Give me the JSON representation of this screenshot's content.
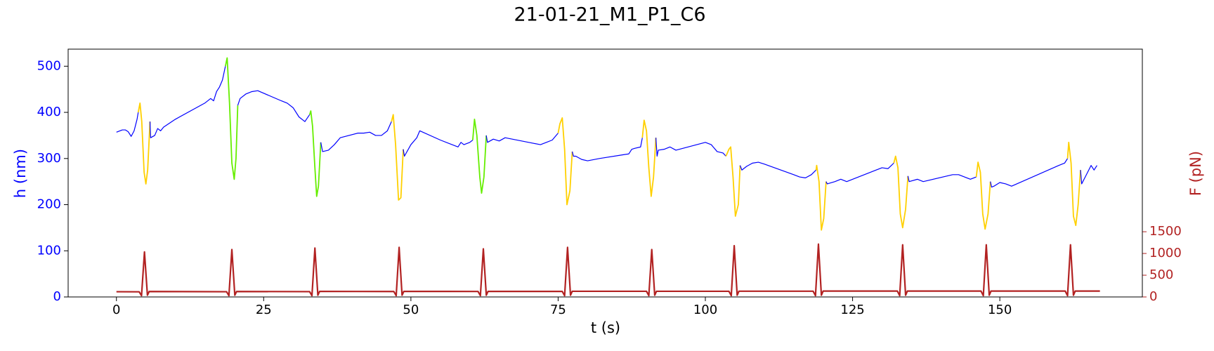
{
  "chart_data": {
    "type": "line",
    "title": "21-01-21_M1_P1_C6",
    "xlabel": "t (s)",
    "ylabel": "h (nm)",
    "y2label": "F (pN)",
    "ylabel_color": "#0000ff",
    "y2label_color": "#b22222",
    "xlim": [
      -8.2,
      174.2
    ],
    "xticks": [
      0,
      25,
      50,
      75,
      100,
      125,
      150
    ],
    "ylim": [
      0,
      537
    ],
    "yticks": [
      0,
      100,
      200,
      300,
      400,
      500
    ],
    "y2lim": [
      0,
      5700
    ],
    "y2ticks": [
      0,
      500,
      1000,
      1500
    ],
    "series": [
      {
        "color": "#0000ff",
        "x": [
          0,
          1,
          1.5,
          2,
          2.5,
          3,
          3.5,
          3.7
        ],
        "values": [
          357,
          362,
          362,
          358,
          348,
          360,
          385,
          400
        ]
      },
      {
        "color": "#ffd000",
        "x": [
          3.7,
          4,
          4.3,
          4.7,
          5,
          5.3,
          5.7
        ],
        "values": [
          400,
          420,
          380,
          270,
          245,
          275,
          380
        ]
      },
      {
        "color": "#0000ff",
        "x": [
          5.7,
          5.8,
          6.5,
          7,
          7.5,
          8,
          10,
          15,
          16,
          16.5,
          17,
          17.5,
          18,
          18.5
        ],
        "values": [
          380,
          345,
          350,
          365,
          360,
          368,
          385,
          420,
          430,
          425,
          445,
          455,
          470,
          500
        ]
      },
      {
        "color": "#66ee00",
        "x": [
          18.5,
          18.8,
          19.2,
          19.6,
          20,
          20.3,
          20.6
        ],
        "values": [
          500,
          518,
          420,
          290,
          255,
          300,
          415
        ]
      },
      {
        "color": "#0000ff",
        "x": [
          20.6,
          21,
          22,
          23,
          24,
          28,
          29,
          30,
          31,
          32,
          32.8
        ],
        "values": [
          415,
          430,
          440,
          445,
          447,
          425,
          420,
          410,
          390,
          380,
          395
        ]
      },
      {
        "color": "#66ee00",
        "x": [
          32.8,
          33,
          33.3,
          33.7,
          34,
          34.3,
          34.7
        ],
        "values": [
          395,
          403,
          370,
          280,
          218,
          240,
          335
        ]
      },
      {
        "color": "#0000ff",
        "x": [
          34.7,
          35,
          36,
          37,
          38,
          41,
          42,
          43,
          44,
          45,
          46,
          46.7
        ],
        "values": [
          335,
          315,
          318,
          330,
          345,
          355,
          355,
          357,
          350,
          350,
          360,
          380
        ]
      },
      {
        "color": "#ffd000",
        "x": [
          46.7,
          47,
          47.4,
          47.9,
          48.3,
          48.7
        ],
        "values": [
          380,
          395,
          330,
          210,
          215,
          320
        ]
      },
      {
        "color": "#0000ff",
        "x": [
          48.7,
          48.9,
          50,
          51,
          51.5,
          55,
          58,
          58.5,
          59,
          60,
          60.5
        ],
        "values": [
          320,
          305,
          330,
          345,
          360,
          340,
          325,
          335,
          330,
          335,
          340
        ]
      },
      {
        "color": "#66ee00",
        "x": [
          60.5,
          60.8,
          61.2,
          61.7,
          62,
          62.4,
          62.8
        ],
        "values": [
          340,
          385,
          350,
          260,
          225,
          260,
          350
        ]
      },
      {
        "color": "#0000ff",
        "x": [
          62.8,
          63,
          64,
          65,
          66,
          70,
          72,
          73,
          74,
          75
        ],
        "values": [
          350,
          335,
          342,
          338,
          345,
          335,
          330,
          335,
          340,
          355
        ]
      },
      {
        "color": "#ffd000",
        "x": [
          75,
          75.3,
          75.7,
          76.1,
          76.5,
          77,
          77.4
        ],
        "values": [
          355,
          375,
          388,
          320,
          200,
          230,
          315
        ]
      },
      {
        "color": "#0000ff",
        "x": [
          77.4,
          77.6,
          78,
          79,
          80,
          82,
          86,
          87,
          87.5,
          88,
          89,
          89.3
        ],
        "values": [
          315,
          305,
          305,
          298,
          295,
          300,
          308,
          310,
          320,
          322,
          325,
          345
        ]
      },
      {
        "color": "#ffd000",
        "x": [
          89.3,
          89.6,
          90,
          90.4,
          90.8,
          91.2,
          91.6
        ],
        "values": [
          345,
          383,
          360,
          280,
          218,
          260,
          345
        ]
      },
      {
        "color": "#0000ff",
        "x": [
          91.6,
          91.8,
          92,
          93,
          94,
          95,
          100,
          101,
          102,
          103,
          103.5
        ],
        "values": [
          345,
          305,
          318,
          320,
          325,
          318,
          335,
          330,
          315,
          312,
          305
        ]
      },
      {
        "color": "#ffd000",
        "x": [
          103.5,
          104,
          104.3,
          104.7,
          105.1,
          105.6,
          105.9
        ],
        "values": [
          305,
          320,
          325,
          260,
          175,
          200,
          285
        ]
      },
      {
        "color": "#0000ff",
        "x": [
          105.9,
          106.2,
          107,
          108,
          109,
          110,
          115,
          116,
          117,
          118,
          118.8
        ],
        "values": [
          285,
          275,
          283,
          290,
          292,
          288,
          265,
          260,
          258,
          265,
          275
        ]
      },
      {
        "color": "#ffd000",
        "x": [
          118.8,
          118.9,
          119.3,
          119.7,
          120.1,
          120.5
        ],
        "values": [
          275,
          285,
          250,
          145,
          170,
          250
        ]
      },
      {
        "color": "#0000ff",
        "x": [
          120.5,
          120.7,
          122,
          123,
          124,
          129,
          130,
          131,
          132
        ],
        "values": [
          250,
          245,
          250,
          255,
          250,
          275,
          280,
          278,
          290
        ]
      },
      {
        "color": "#ffd000",
        "x": [
          132,
          132.3,
          132.7,
          133.1,
          133.5,
          134,
          134.4
        ],
        "values": [
          290,
          305,
          280,
          180,
          150,
          190,
          262
        ]
      },
      {
        "color": "#0000ff",
        "x": [
          134.4,
          134.6,
          136,
          137,
          142,
          143,
          144,
          145,
          146
        ],
        "values": [
          262,
          250,
          255,
          250,
          265,
          265,
          260,
          255,
          260
        ]
      },
      {
        "color": "#ffd000",
        "x": [
          146,
          146.3,
          146.7,
          147.1,
          147.5,
          148,
          148.4
        ],
        "values": [
          260,
          292,
          270,
          180,
          147,
          180,
          250
        ]
      },
      {
        "color": "#0000ff",
        "x": [
          148.4,
          148.6,
          149,
          150,
          151,
          152,
          160,
          161,
          161.5
        ],
        "values": [
          250,
          238,
          240,
          248,
          245,
          240,
          285,
          290,
          300
        ]
      },
      {
        "color": "#ffd000",
        "x": [
          161.5,
          161.7,
          162.1,
          162.5,
          162.9,
          163.3,
          163.7
        ],
        "values": [
          300,
          335,
          290,
          175,
          155,
          200,
          275
        ]
      },
      {
        "color": "#0000ff",
        "x": [
          163.7,
          163.9,
          164.5,
          165.5,
          166,
          166.5
        ],
        "values": [
          275,
          245,
          260,
          285,
          275,
          285
        ]
      },
      {
        "color": "#b22222",
        "axis": "y2",
        "x": [
          0,
          3.86,
          4.26,
          4.76,
          5.26,
          5.56,
          18.7,
          19.1,
          19.6,
          20.1,
          20.4,
          32.8,
          33.2,
          33.7,
          34.2,
          34.5,
          47.1,
          47.5,
          48,
          48.5,
          48.8,
          61.4,
          61.8,
          62.3,
          62.8,
          63.1,
          75.7,
          76.1,
          76.6,
          77.1,
          77.4,
          90,
          90.4,
          90.9,
          91.4,
          91.7,
          104,
          104.4,
          104.9,
          105.4,
          105.7,
          118.3,
          118.7,
          119.2,
          119.7,
          120,
          132.6,
          133,
          133.5,
          134,
          134.3,
          146.8,
          147.2,
          147.7,
          148.2,
          148.5,
          161.1,
          161.5,
          162,
          162.5,
          162.8,
          167
        ],
        "values": [
          120,
          118,
          30,
          1036,
          40,
          125,
          120,
          30,
          1090,
          40,
          125,
          122,
          30,
          1125,
          40,
          128,
          125,
          30,
          1140,
          40,
          128,
          126,
          30,
          1107,
          40,
          128,
          127,
          30,
          1140,
          40,
          130,
          130,
          30,
          1090,
          40,
          130,
          130,
          30,
          1180,
          40,
          132,
          132,
          30,
          1215,
          40,
          135,
          135,
          30,
          1200,
          40,
          135,
          135,
          30,
          1200,
          40,
          135,
          135,
          30,
          1200,
          40,
          135,
          135
        ]
      }
    ]
  }
}
